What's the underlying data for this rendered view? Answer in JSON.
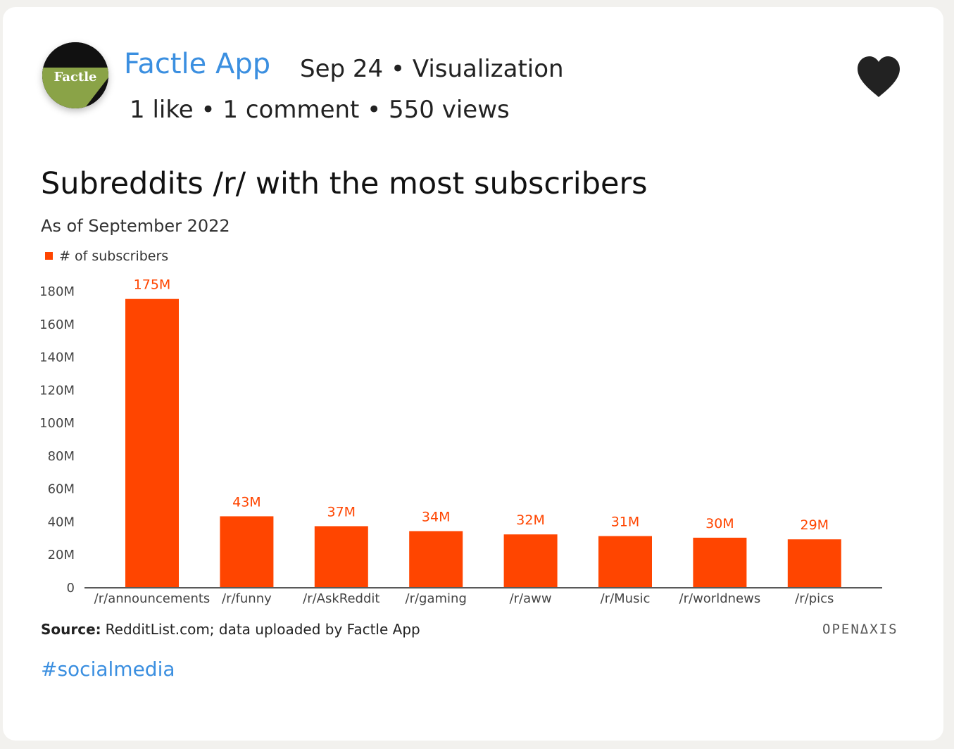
{
  "post": {
    "author": "Factle App",
    "meta": "Sep 24 • Visualization",
    "stats": "1 like • 1 comment • 550 views",
    "avatar_text": "Factle",
    "hashtag": "#socialmedia",
    "source_label": "Source:",
    "source_text": "RedditList.com; data uploaded by Factle App",
    "brand": "OPENΔXIS"
  },
  "colors": {
    "bar": "#ff4500",
    "label": "#ff4500",
    "link": "#3b8fe0",
    "heart": "#222222"
  },
  "icons": {
    "like": "heart-icon",
    "legend": "square-marker-icon"
  },
  "chart_data": {
    "type": "bar",
    "title": "Subreddits /r/ with the most subscribers",
    "subtitle": "As of September 2022",
    "xlabel": "",
    "ylabel": "",
    "legend_position": "top-left",
    "grid": false,
    "ylim": [
      0,
      180
    ],
    "yticks": [
      "0",
      "20M",
      "40M",
      "60M",
      "80M",
      "100M",
      "120M",
      "140M",
      "160M",
      "180M"
    ],
    "categories": [
      "/r/announcements",
      "/r/funny",
      "/r/AskReddit",
      "/r/gaming",
      "/r/aww",
      "/r/Music",
      "/r/worldnews",
      "/r/pics"
    ],
    "series": [
      {
        "name": "# of subscribers",
        "values": [
          175,
          43,
          37,
          34,
          32,
          31,
          30,
          29
        ],
        "labels": [
          "175M",
          "43M",
          "37M",
          "34M",
          "32M",
          "31M",
          "30M",
          "29M"
        ]
      }
    ]
  }
}
